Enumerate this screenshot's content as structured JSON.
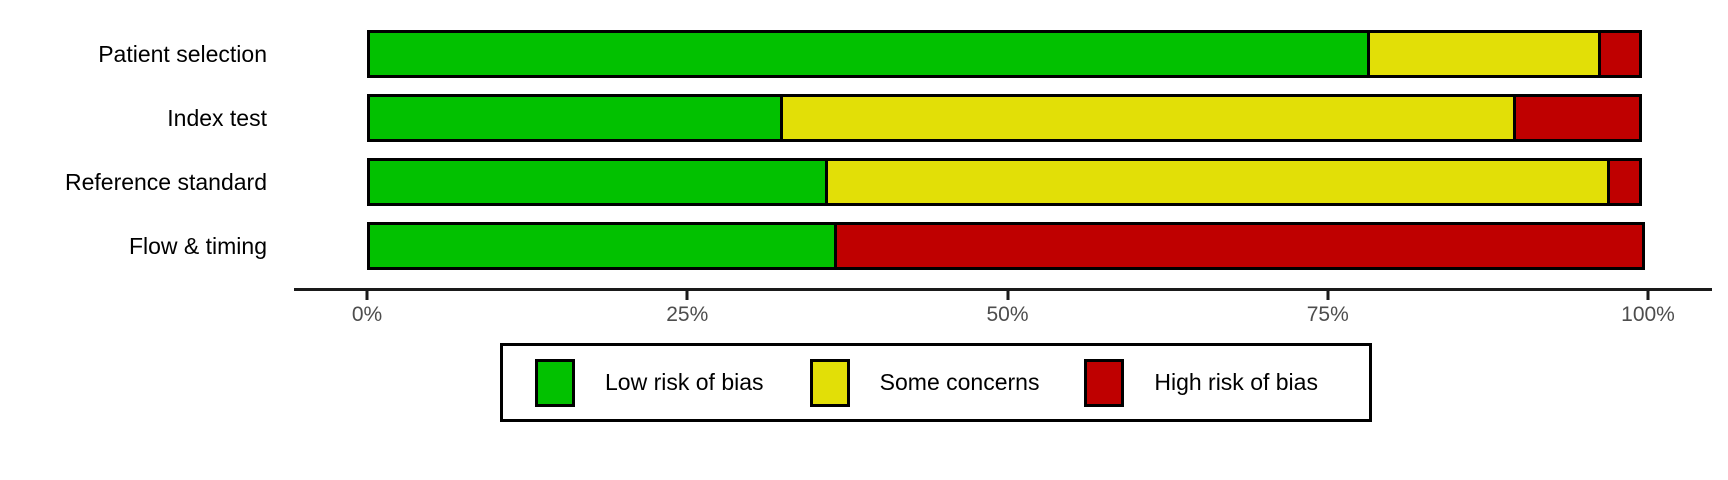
{
  "chart_data": {
    "type": "bar",
    "subtype": "stacked-horizontal",
    "title": "",
    "xlabel": "",
    "ylabel": "",
    "grid": false,
    "xlim": [
      0,
      100
    ],
    "x_tick_values": [
      0,
      25,
      50,
      75,
      100
    ],
    "x_tick_labels": [
      "0%",
      "25%",
      "50%",
      "75%",
      "100%"
    ],
    "categories": [
      "Patient selection",
      "Index test",
      "Reference standard",
      "Flow & timing"
    ],
    "series": [
      {
        "key": "low",
        "name": "Low risk of bias",
        "color": "#02C100",
        "values": [
          78.3,
          32.5,
          36.0,
          36.7
        ]
      },
      {
        "key": "concerns",
        "name": "Some concerns",
        "color": "#E2DF07",
        "values": [
          18.3,
          57.4,
          61.3,
          0.0
        ]
      },
      {
        "key": "high",
        "name": "High risk of bias",
        "color": "#BF0000",
        "values": [
          3.4,
          10.1,
          2.7,
          63.3
        ]
      }
    ],
    "legend_position": "bottom",
    "bar_border_color": "#000000",
    "axis_color": "#1a1a1a",
    "tick_label_color": "#4d4d4d"
  }
}
